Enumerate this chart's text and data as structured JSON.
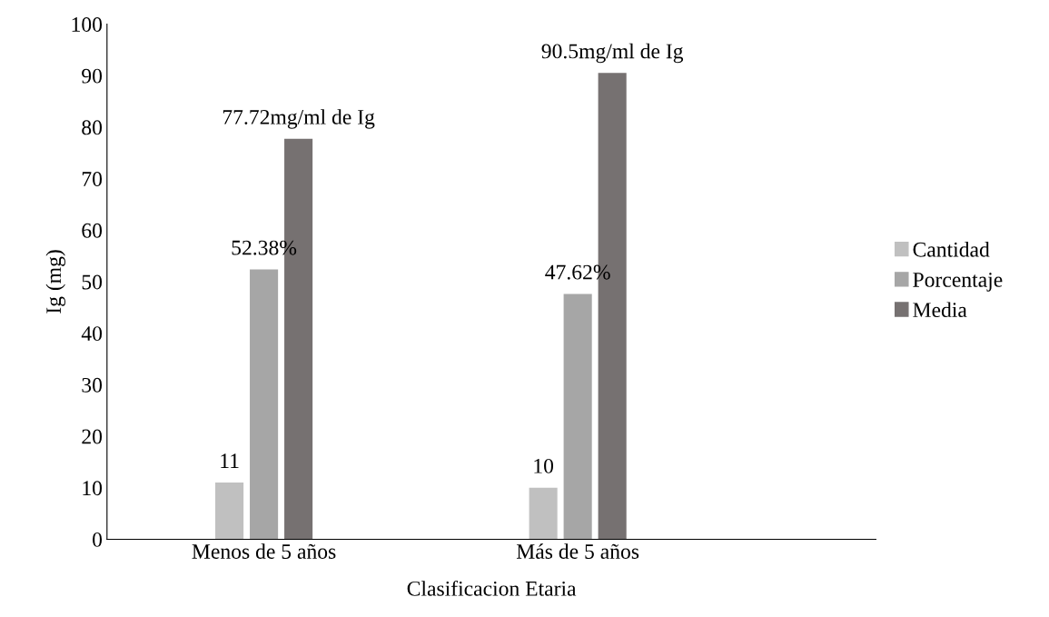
{
  "chart_data": {
    "type": "bar",
    "xlabel": "Clasificacion Etaria",
    "ylabel": "Ig (mg)",
    "categories": [
      "Menos de 5 años",
      "Más de 5 años"
    ],
    "series": [
      {
        "name": "Cantidad",
        "color": "#c0c0c0",
        "values": [
          11,
          10
        ],
        "value_labels": [
          "11",
          "10"
        ]
      },
      {
        "name": "Porcentaje",
        "color": "#a6a6a6",
        "values": [
          52.38,
          47.62
        ],
        "value_labels": [
          "52.38%",
          "47.62%"
        ]
      },
      {
        "name": "Media",
        "color": "#767171",
        "values": [
          77.72,
          90.5
        ],
        "value_labels": [
          "77.72mg/ml de Ig",
          "90.5mg/ml de Ig"
        ]
      }
    ],
    "ylim": [
      0,
      100
    ],
    "yticks": [
      0,
      10,
      20,
      30,
      40,
      50,
      60,
      70,
      80,
      90,
      100
    ],
    "grid": false,
    "legend": "right"
  }
}
